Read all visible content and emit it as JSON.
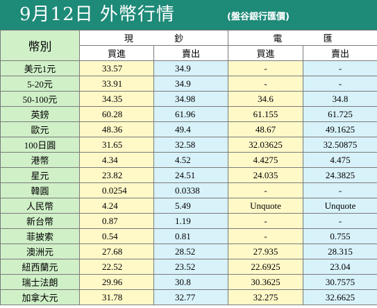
{
  "title": "9月12日 外幣行情",
  "subtitle": "(盤谷銀行匯價)",
  "header": {
    "currency": "幣別",
    "cash": "現 鈔",
    "wire": "電 匯",
    "buy": "買進",
    "sell": "賣出"
  },
  "rows": [
    {
      "currency": "美元1元",
      "cash_buy": "33.57",
      "cash_sell": "34.9",
      "wire_buy": "-",
      "wire_sell": "-"
    },
    {
      "currency": "5-20元",
      "cash_buy": "33.91",
      "cash_sell": "34.9",
      "wire_buy": "-",
      "wire_sell": "-"
    },
    {
      "currency": "50-100元",
      "cash_buy": "34.35",
      "cash_sell": "34.98",
      "wire_buy": "34.6",
      "wire_sell": "34.8"
    },
    {
      "currency": "英鎊",
      "cash_buy": "60.28",
      "cash_sell": "61.96",
      "wire_buy": "61.155",
      "wire_sell": "61.725"
    },
    {
      "currency": "歐元",
      "cash_buy": "48.36",
      "cash_sell": "49.4",
      "wire_buy": "48.67",
      "wire_sell": "49.1625"
    },
    {
      "currency": "100日圓",
      "cash_buy": "31.65",
      "cash_sell": "32.58",
      "wire_buy": "32.03625",
      "wire_sell": "32.50875"
    },
    {
      "currency": "港幣",
      "cash_buy": "4.34",
      "cash_sell": "4.52",
      "wire_buy": "4.4275",
      "wire_sell": "4.475"
    },
    {
      "currency": "星元",
      "cash_buy": "23.82",
      "cash_sell": "24.51",
      "wire_buy": "24.035",
      "wire_sell": "24.3825"
    },
    {
      "currency": "韓圓",
      "cash_buy": "0.0254",
      "cash_sell": "0.0338",
      "wire_buy": "-",
      "wire_sell": "-"
    },
    {
      "currency": "人民幣",
      "cash_buy": "4.24",
      "cash_sell": "5.49",
      "wire_buy": "Unquote",
      "wire_sell": "Unquote"
    },
    {
      "currency": "新台幣",
      "cash_buy": "0.87",
      "cash_sell": "1.19",
      "wire_buy": "-",
      "wire_sell": "-"
    },
    {
      "currency": "菲披索",
      "cash_buy": "0.54",
      "cash_sell": "0.81",
      "wire_buy": "-",
      "wire_sell": "0.755"
    },
    {
      "currency": "澳洲元",
      "cash_buy": "27.68",
      "cash_sell": "28.52",
      "wire_buy": "27.935",
      "wire_sell": "28.315"
    },
    {
      "currency": "紐西蘭元",
      "cash_buy": "22.52",
      "cash_sell": "23.52",
      "wire_buy": "22.6925",
      "wire_sell": "23.04"
    },
    {
      "currency": "瑞士法朗",
      "cash_buy": "29.96",
      "cash_sell": "30.8",
      "wire_buy": "30.3625",
      "wire_sell": "30.7575"
    },
    {
      "currency": "加拿大元",
      "cash_buy": "31.78",
      "cash_sell": "32.77",
      "wire_buy": "32.275",
      "wire_sell": "32.6625"
    }
  ]
}
